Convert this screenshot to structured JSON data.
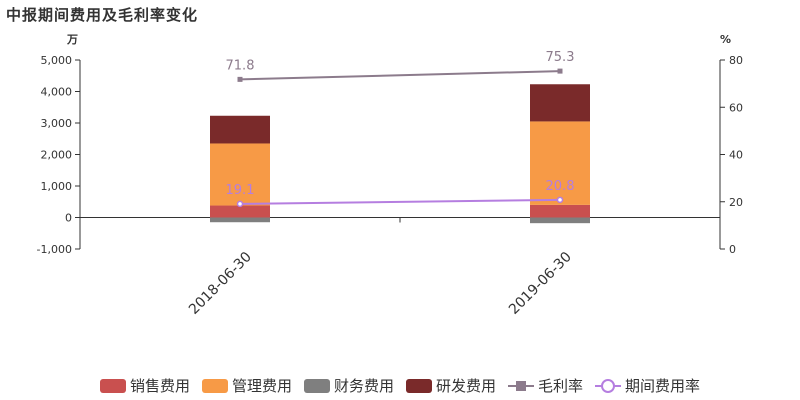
{
  "title": "中报期间费用及毛利率变化",
  "chart_data": {
    "type": "bar",
    "categories": [
      "2018-06-30",
      "2019-06-30"
    ],
    "left_axis": {
      "unit": "万",
      "min": -1000,
      "max": 5000,
      "ticks": [
        -1000,
        0,
        1000,
        2000,
        3000,
        4000,
        5000
      ],
      "tick_labels": [
        "-1,000",
        "0",
        "1,000",
        "2,000",
        "3,000",
        "4,000",
        "5,000"
      ]
    },
    "right_axis": {
      "unit": "%",
      "min": 0,
      "max": 80,
      "ticks": [
        0,
        20,
        40,
        60,
        80
      ],
      "tick_labels": [
        "0",
        "20",
        "40",
        "60",
        "80"
      ]
    },
    "bar_series": [
      {
        "name": "销售费用",
        "color": "#c9504f",
        "values": [
          380,
          400
        ]
      },
      {
        "name": "管理费用",
        "color": "#f79a46",
        "values": [
          1970,
          2650
        ]
      },
      {
        "name": "财务费用",
        "color": "#7f7f7f",
        "values": [
          -150,
          -180
        ]
      },
      {
        "name": "研发费用",
        "color": "#7a2a2a",
        "values": [
          880,
          1180
        ]
      }
    ],
    "line_series": [
      {
        "name": "毛利率",
        "color": "#8c7b8c",
        "marker": "square",
        "values": [
          71.8,
          75.3
        ],
        "labels": [
          "71.8",
          "75.3"
        ]
      },
      {
        "name": "期间费用率",
        "color": "#b57ee0",
        "marker": "circle",
        "values": [
          19.1,
          20.8
        ],
        "labels": [
          "19.1",
          "20.8"
        ]
      }
    ],
    "legend_position": "bottom"
  }
}
